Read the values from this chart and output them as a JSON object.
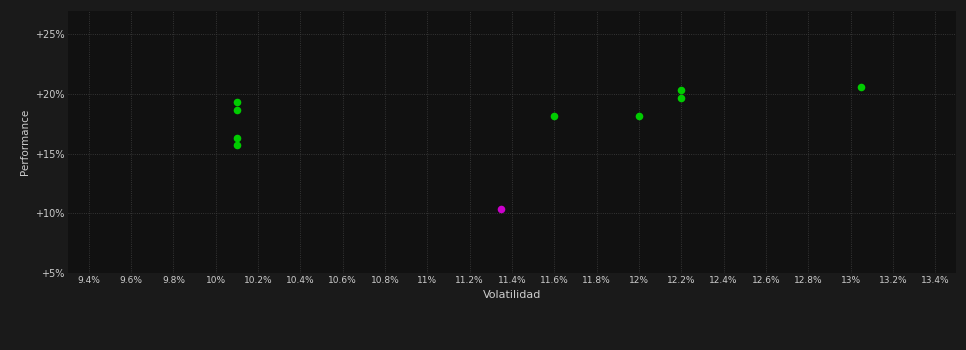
{
  "xlabel": "Volatilidad",
  "ylabel": "Performance",
  "background_color": "#1a1a1a",
  "plot_bg_color": "#111111",
  "grid_color": "#404040",
  "text_color": "#cccccc",
  "green_points": [
    [
      10.1,
      19.3
    ],
    [
      10.1,
      18.7
    ],
    [
      10.1,
      16.3
    ],
    [
      10.1,
      15.7
    ],
    [
      11.6,
      18.2
    ],
    [
      12.0,
      18.2
    ],
    [
      12.2,
      20.3
    ],
    [
      12.2,
      19.7
    ],
    [
      13.05,
      20.6
    ]
  ],
  "magenta_points": [
    [
      11.35,
      10.4
    ]
  ],
  "xlim": [
    9.3,
    13.5
  ],
  "ylim": [
    5.0,
    27.0
  ],
  "xtick_values": [
    9.4,
    9.6,
    9.8,
    10.0,
    10.2,
    10.4,
    10.6,
    10.8,
    11.0,
    11.2,
    11.4,
    11.6,
    11.8,
    12.0,
    12.2,
    12.4,
    12.6,
    12.8,
    13.0,
    13.2,
    13.4
  ],
  "xtick_labels": [
    "9.4%",
    "9.6%",
    "9.8%",
    "10%",
    "10.2%",
    "10.4%",
    "10.6%",
    "10.8%",
    "11%",
    "11.2%",
    "11.4%",
    "11.6%",
    "11.8%",
    "12%",
    "12.2%",
    "12.4%",
    "12.6%",
    "12.8%",
    "13%",
    "13.2%",
    "13.4%"
  ],
  "yticks": [
    5.0,
    10.0,
    15.0,
    20.0,
    25.0
  ],
  "ytick_labels": [
    "+5%",
    "+10%",
    "+15%",
    "+20%",
    "+25%"
  ],
  "marker_size": 30,
  "green_color": "#00cc00",
  "magenta_color": "#cc00cc"
}
